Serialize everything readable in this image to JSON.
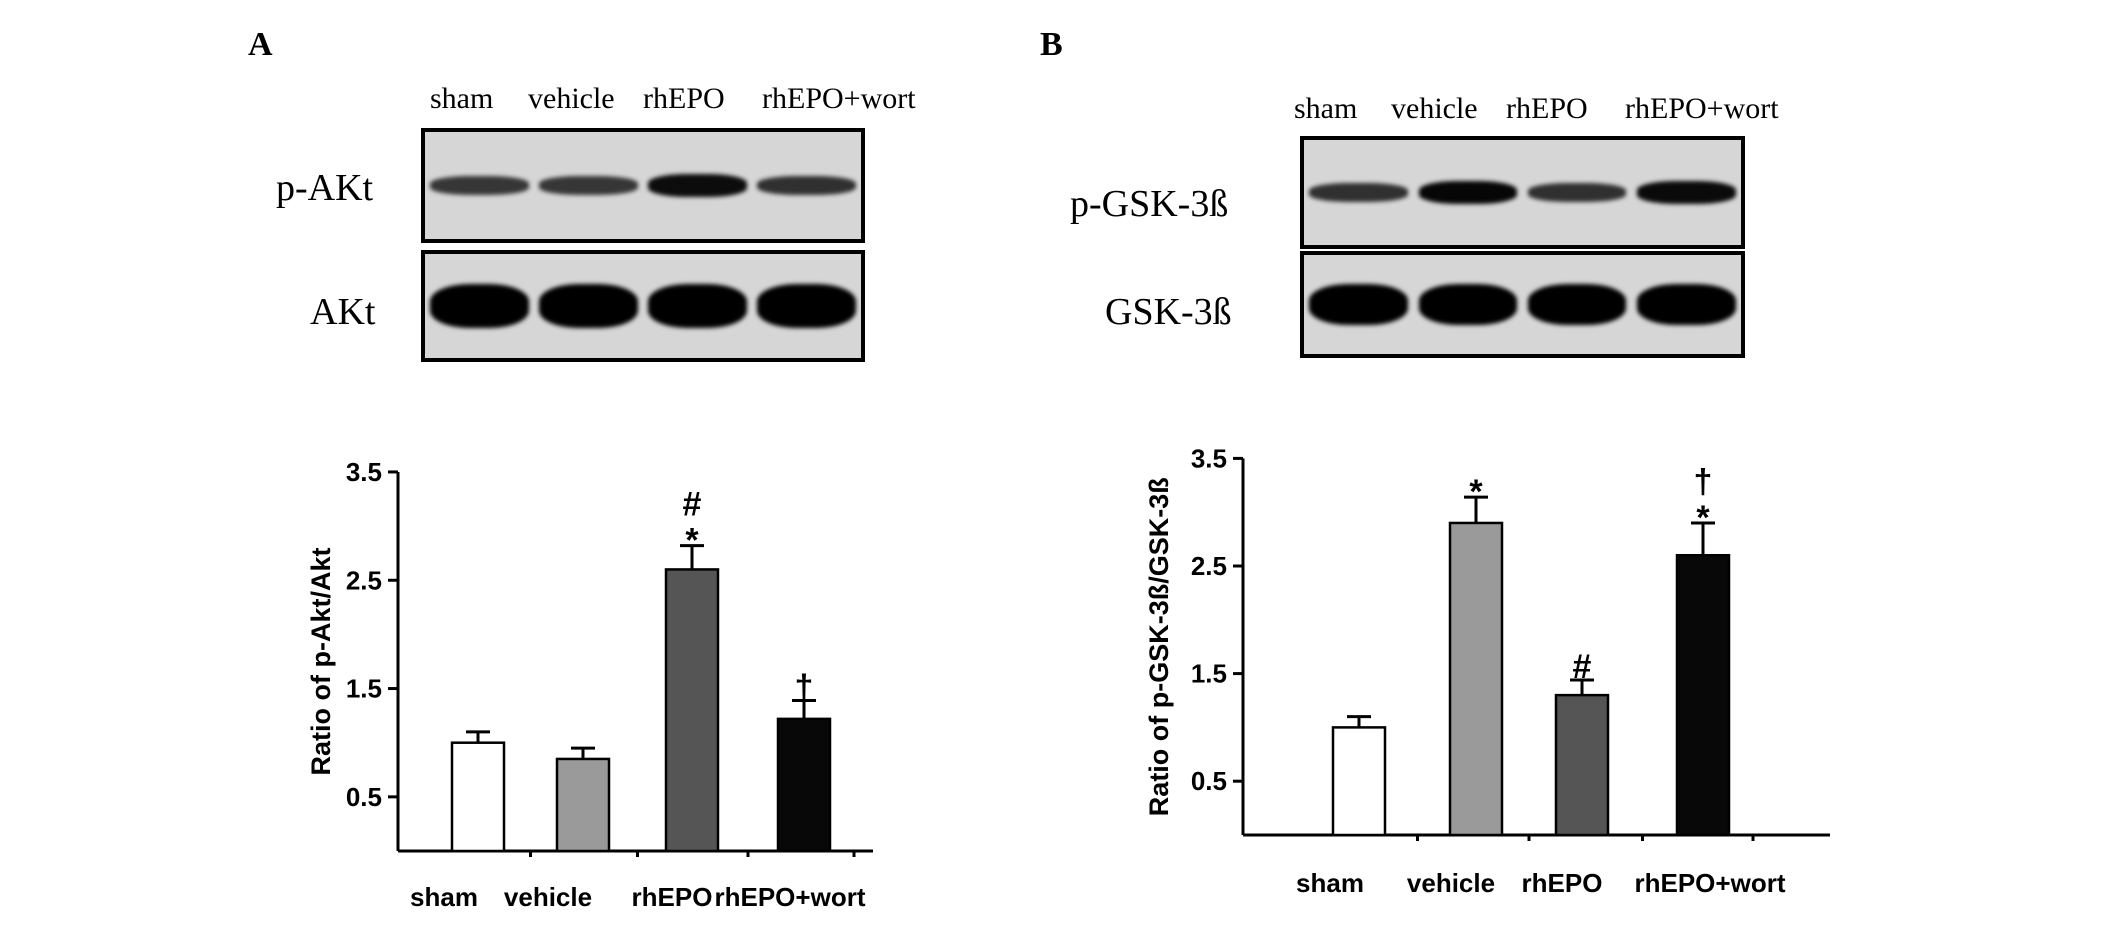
{
  "panels": [
    {
      "letter": "A",
      "lanes": [
        "sham",
        "vehicle",
        "rhEPO",
        "rhEPO+wort"
      ],
      "rows": [
        {
          "label": "p-AKt",
          "band_intensity": [
            0.55,
            0.55,
            0.9,
            0.6
          ]
        },
        {
          "label": "AKt",
          "band_intensity": [
            1.0,
            1.0,
            1.0,
            1.0
          ]
        }
      ]
    },
    {
      "letter": "B",
      "lanes": [
        "sham",
        "vehicle",
        "rhEPO",
        "rhEPO+wort"
      ],
      "rows": [
        {
          "label": "p-GSK-3ß",
          "band_intensity": [
            0.6,
            0.95,
            0.6,
            0.92
          ]
        },
        {
          "label": "GSK-3ß",
          "band_intensity": [
            1.0,
            1.0,
            1.0,
            1.0
          ]
        }
      ]
    }
  ],
  "chart_data": [
    {
      "type": "bar",
      "categories": [
        "sham",
        "vehicle",
        "rhEPO",
        "rhEPO+wort"
      ],
      "values": [
        1.0,
        0.85,
        2.6,
        1.22
      ],
      "errors": [
        0.1,
        0.1,
        0.22,
        0.17
      ],
      "significance": [
        [],
        [],
        [
          "*",
          "#"
        ],
        [
          "†"
        ]
      ],
      "ylabel": "Ratio of  p-Akt/Akt",
      "yticks": [
        0.5,
        1.5,
        2.5,
        3.5
      ],
      "ylim": [
        0,
        3.5
      ],
      "colors": [
        "#ffffff",
        "#9a9a9a",
        "#555555",
        "#080808"
      ]
    },
    {
      "type": "bar",
      "categories": [
        "sham",
        "vehicle",
        "rhEPO",
        "rhEPO+wort"
      ],
      "values": [
        1.0,
        2.9,
        1.3,
        2.6
      ],
      "errors": [
        0.1,
        0.24,
        0.14,
        0.3
      ],
      "significance": [
        [],
        [
          "*"
        ],
        [
          "#"
        ],
        [
          "*",
          "†"
        ]
      ],
      "ylabel": "Ratio of p-GSK-3ß/GSK-3ß",
      "yticks": [
        0.5,
        1.5,
        2.5,
        3.5
      ],
      "ylim": [
        0,
        3.5
      ],
      "colors": [
        "#ffffff",
        "#9a9a9a",
        "#555555",
        "#080808"
      ]
    }
  ]
}
